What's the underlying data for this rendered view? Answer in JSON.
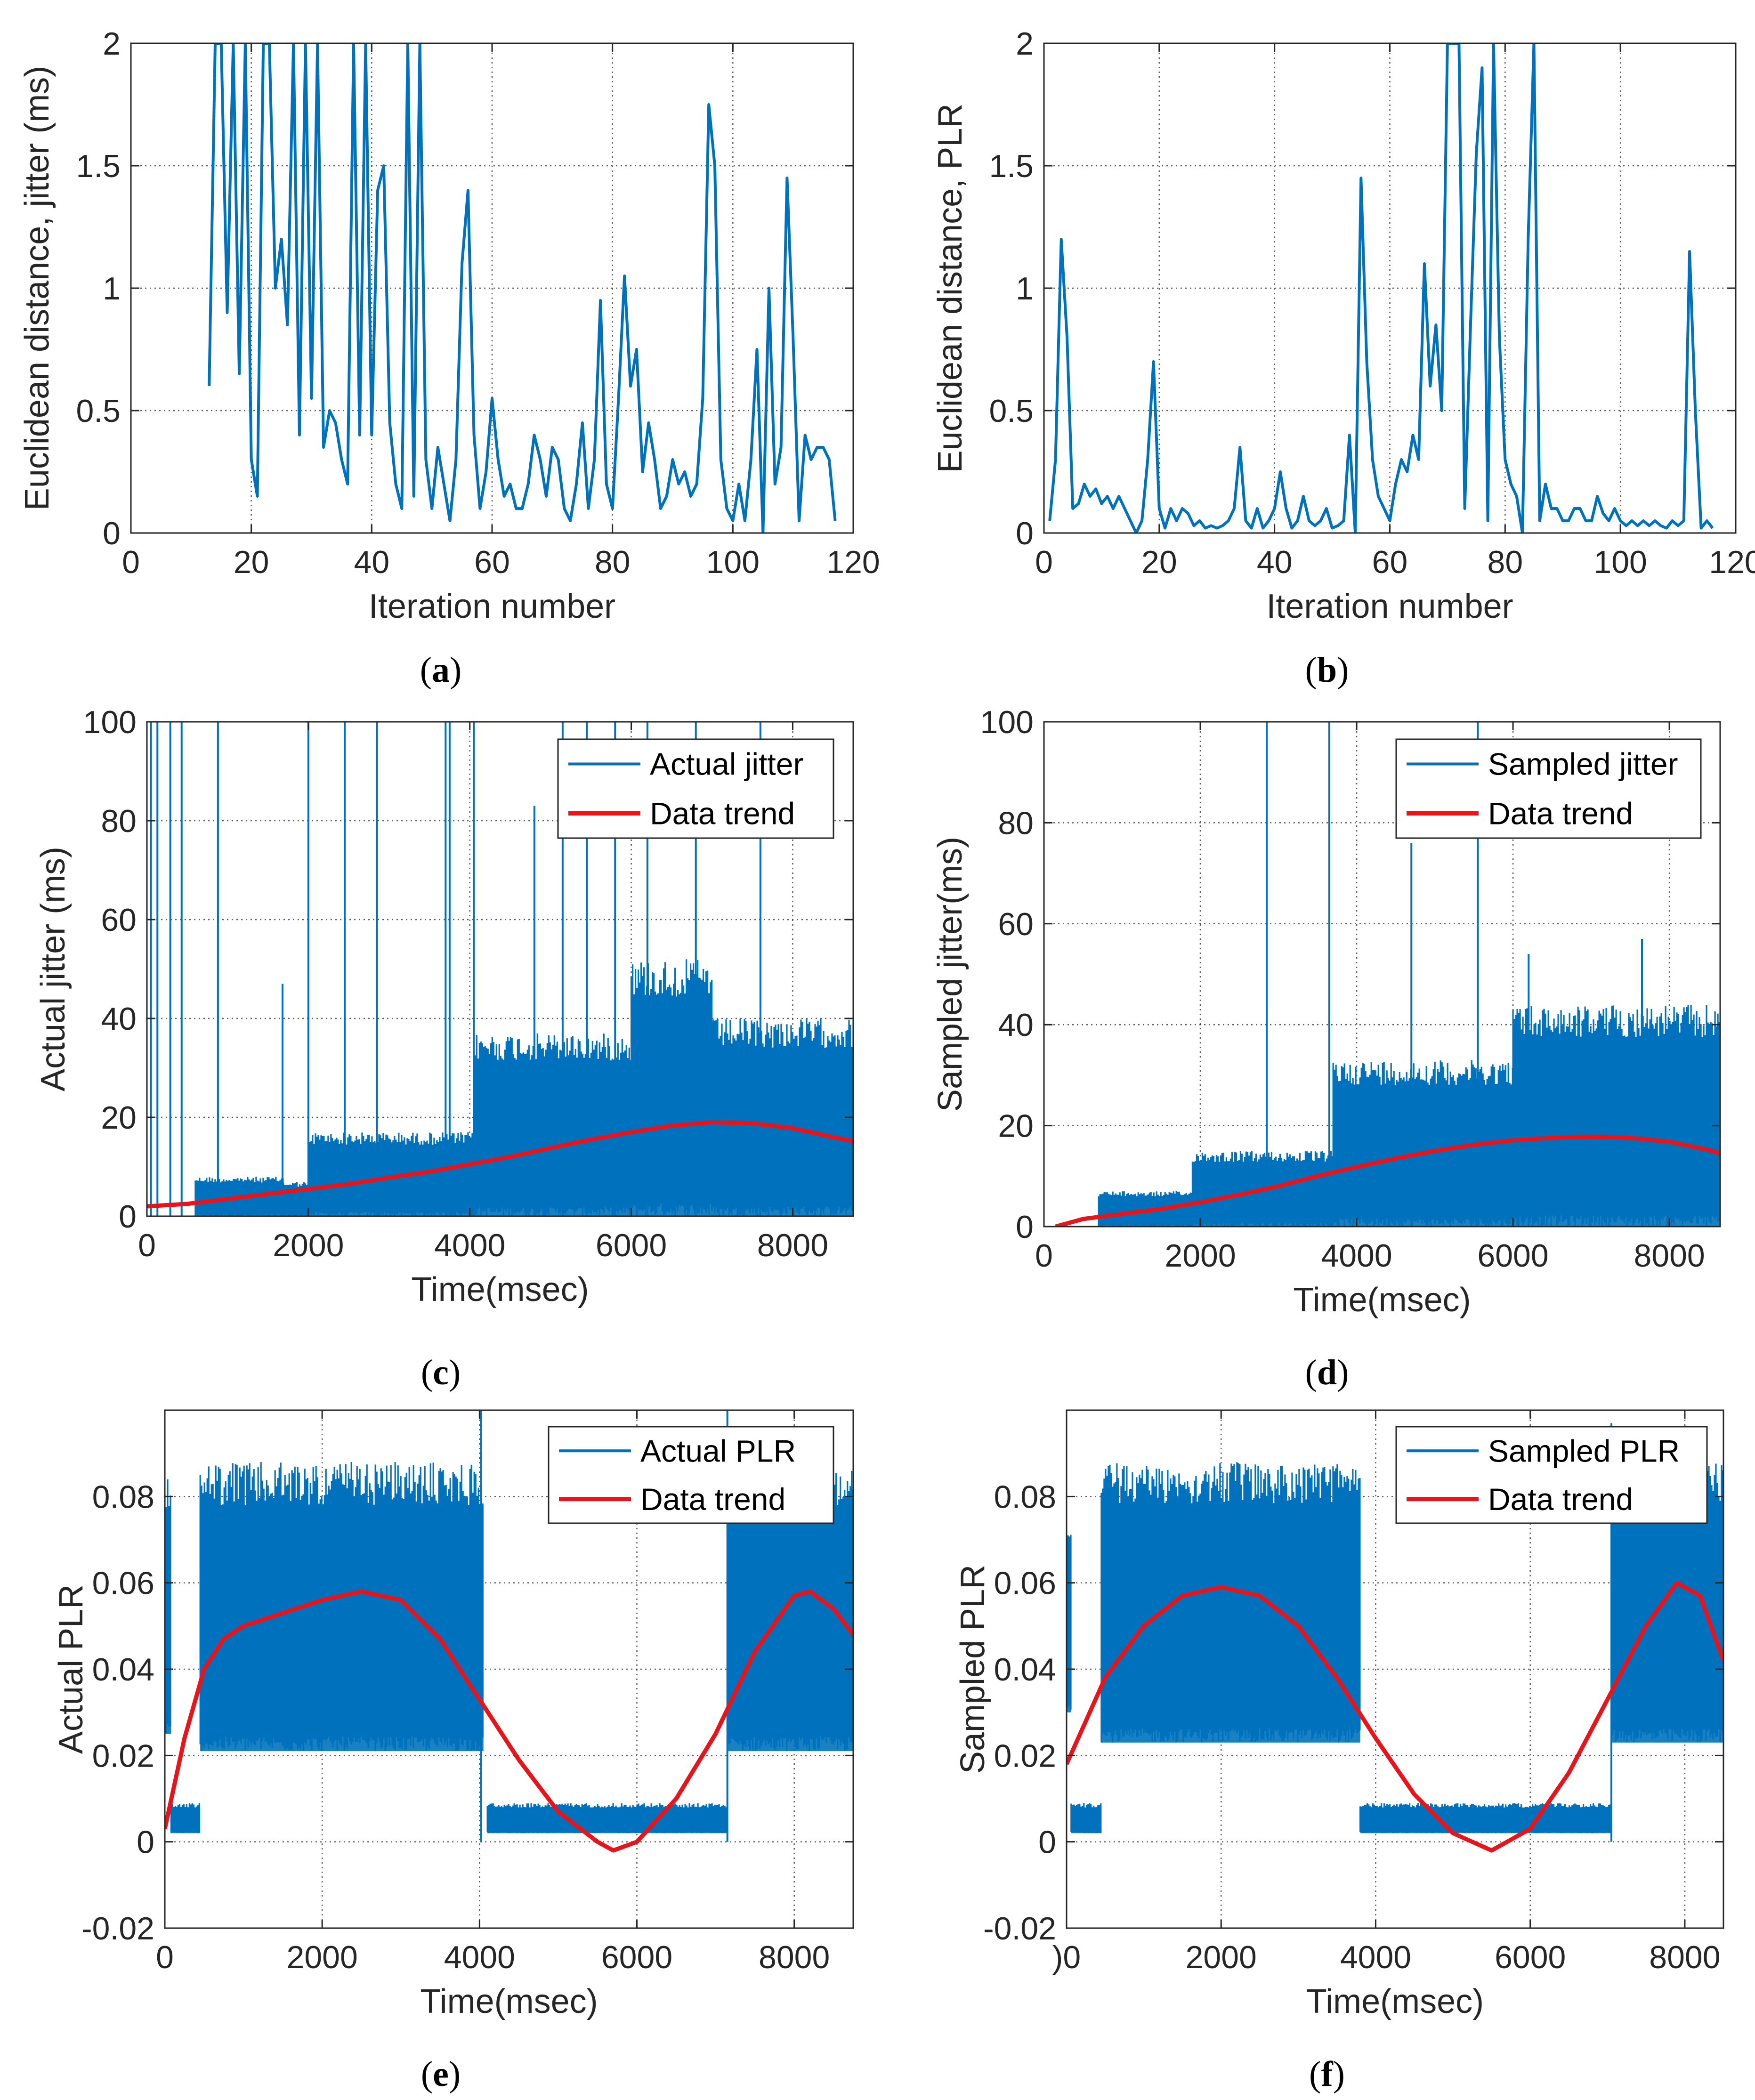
{
  "figure": {
    "colors": {
      "signal": "#0072BD",
      "trend": "#E8141C",
      "axes": "#262626",
      "grid": "#262626"
    },
    "panel_labels": [
      {
        "open": "(",
        "letter": "a",
        "close": ")"
      },
      {
        "open": "(",
        "letter": "b",
        "close": ")"
      },
      {
        "open": "(",
        "letter": "c",
        "close": ")"
      },
      {
        "open": "(",
        "letter": "d",
        "close": ")"
      },
      {
        "open": "(",
        "letter": "e",
        "close": ")"
      },
      {
        "open": "(",
        "letter": "f",
        "close": ")"
      }
    ]
  },
  "chart_data": [
    {
      "id": "a",
      "type": "line",
      "xlabel": "Iteration number",
      "ylabel": "Euclidean distance, jitter (ms)",
      "xlim": [
        0,
        120
      ],
      "ylim": [
        0,
        2
      ],
      "xticks": [
        0,
        20,
        40,
        60,
        80,
        100,
        120
      ],
      "yticks": [
        0,
        0.5,
        1,
        1.5,
        2
      ],
      "ytick_labels": [
        "0",
        "0.5",
        "1",
        "1.5",
        "2"
      ],
      "grid": "dotted",
      "series": [
        {
          "color": "#0072BD",
          "x": [
            13,
            14,
            15,
            16,
            17,
            18,
            19,
            20,
            21,
            22,
            23,
            24,
            25,
            26,
            27,
            28,
            29,
            30,
            31,
            32,
            33,
            34,
            35,
            36,
            37,
            38,
            39,
            40,
            41,
            42,
            43,
            44,
            45,
            46,
            47,
            48,
            49,
            50,
            51,
            52,
            53,
            54,
            55,
            56,
            57,
            58,
            59,
            60,
            61,
            62,
            63,
            64,
            65,
            66,
            67,
            68,
            69,
            70,
            71,
            72,
            73,
            74,
            75,
            76,
            77,
            78,
            79,
            80,
            81,
            82,
            83,
            84,
            85,
            86,
            87,
            88,
            89,
            90,
            91,
            92,
            93,
            94,
            95,
            96,
            97,
            98,
            99,
            100,
            101,
            102,
            103,
            104,
            105,
            106,
            107,
            108,
            109,
            110,
            111,
            112,
            113,
            114,
            115,
            116,
            117
          ],
          "y": [
            0.6,
            2,
            2,
            0.9,
            2,
            0.65,
            2,
            0.3,
            0.15,
            2,
            2,
            1.0,
            1.2,
            0.85,
            2,
            0.4,
            2,
            0.55,
            2,
            0.35,
            0.5,
            0.45,
            0.3,
            0.2,
            2,
            0.4,
            2,
            0.4,
            1.4,
            1.5,
            0.45,
            0.2,
            0.1,
            2,
            0.15,
            2,
            0.3,
            0.1,
            0.35,
            0.2,
            0.05,
            0.3,
            1.1,
            1.4,
            0.4,
            0.1,
            0.25,
            0.55,
            0.3,
            0.15,
            0.2,
            0.1,
            0.1,
            0.2,
            0.4,
            0.3,
            0.15,
            0.35,
            0.3,
            0.1,
            0.05,
            0.2,
            0.45,
            0.1,
            0.3,
            0.95,
            0.2,
            0.1,
            0.55,
            1.05,
            0.6,
            0.75,
            0.25,
            0.45,
            0.3,
            0.1,
            0.15,
            0.3,
            0.2,
            0.25,
            0.15,
            0.2,
            0.55,
            1.75,
            1.5,
            0.3,
            0.1,
            0.05,
            0.2,
            0.05,
            0.3,
            0.75,
            0.0,
            1.0,
            0.2,
            0.35,
            1.45,
            0.8,
            0.05,
            0.4,
            0.3,
            0.35,
            0.35,
            0.3,
            0.05
          ],
          "note": ""
        }
      ]
    },
    {
      "id": "b",
      "type": "line",
      "xlabel": "Iteration number",
      "ylabel": "Euclidean distance, PLR",
      "xlim": [
        0,
        120
      ],
      "ylim": [
        0,
        2
      ],
      "xticks": [
        0,
        20,
        40,
        60,
        80,
        100,
        120
      ],
      "yticks": [
        0,
        0.5,
        1,
        1.5,
        2
      ],
      "ytick_labels": [
        "0",
        "0.5",
        "1",
        "1.5",
        "2"
      ],
      "grid": "dotted",
      "series": [
        {
          "color": "#0072BD",
          "x": [
            1,
            2,
            3,
            4,
            5,
            6,
            7,
            8,
            9,
            10,
            11,
            12,
            13,
            14,
            15,
            16,
            17,
            18,
            19,
            20,
            21,
            22,
            23,
            24,
            25,
            26,
            27,
            28,
            29,
            30,
            31,
            32,
            33,
            34,
            35,
            36,
            37,
            38,
            39,
            40,
            41,
            42,
            43,
            44,
            45,
            46,
            47,
            48,
            49,
            50,
            51,
            52,
            53,
            54,
            55,
            56,
            57,
            58,
            59,
            60,
            61,
            62,
            63,
            64,
            65,
            66,
            67,
            68,
            69,
            70,
            71,
            72,
            73,
            74,
            75,
            76,
            77,
            78,
            79,
            80,
            81,
            82,
            83,
            84,
            85,
            86,
            87,
            88,
            89,
            90,
            91,
            92,
            93,
            94,
            95,
            96,
            97,
            98,
            99,
            100,
            101,
            102,
            103,
            104,
            105,
            106,
            107,
            108,
            109,
            110,
            111,
            112,
            113,
            114,
            115,
            116
          ],
          "y": [
            0.05,
            0.3,
            1.2,
            0.8,
            0.1,
            0.12,
            0.2,
            0.15,
            0.18,
            0.12,
            0.15,
            0.1,
            0.15,
            0.1,
            0.05,
            0.0,
            0.05,
            0.3,
            0.7,
            0.1,
            0.02,
            0.1,
            0.05,
            0.1,
            0.08,
            0.03,
            0.05,
            0.02,
            0.03,
            0.02,
            0.03,
            0.05,
            0.1,
            0.35,
            0.05,
            0.02,
            0.1,
            0.02,
            0.05,
            0.1,
            0.25,
            0.1,
            0.02,
            0.05,
            0.15,
            0.05,
            0.03,
            0.05,
            0.1,
            0.02,
            0.03,
            0.05,
            0.4,
            0.0,
            1.45,
            0.7,
            0.3,
            0.15,
            0.1,
            0.05,
            0.2,
            0.3,
            0.25,
            0.4,
            0.3,
            1.1,
            0.6,
            0.85,
            0.5,
            2,
            2,
            2,
            0.1,
            0.85,
            1.55,
            1.9,
            0.05,
            2,
            0.8,
            0.3,
            0.2,
            0.15,
            0.0,
            1.2,
            2,
            0.05,
            0.2,
            0.1,
            0.1,
            0.05,
            0.05,
            0.1,
            0.1,
            0.05,
            0.05,
            0.15,
            0.08,
            0.05,
            0.1,
            0.05,
            0.03,
            0.05,
            0.03,
            0.05,
            0.03,
            0.05,
            0.03,
            0.02,
            0.05,
            0.03,
            0.05,
            1.15,
            0.5,
            0.02,
            0.05,
            0.02
          ]
        }
      ]
    },
    {
      "id": "c",
      "type": "line",
      "xlabel": "Time(msec)",
      "ylabel": "Actual jitter (ms)",
      "xlim": [
        0,
        8750
      ],
      "ylim": [
        0,
        100
      ],
      "xticks": [
        0,
        2000,
        4000,
        6000,
        8000
      ],
      "yticks": [
        0,
        20,
        40,
        60,
        80,
        100
      ],
      "ytick_labels": [
        "0",
        "20",
        "40",
        "60",
        "80",
        "100"
      ],
      "grid": "dotted",
      "legend": {
        "position": "top-right",
        "entries": [
          "Actual jitter",
          "Data trend"
        ]
      },
      "signal_bands": [
        {
          "x0": 600,
          "x1": 1700,
          "lo": 0,
          "hi": 8
        },
        {
          "x0": 1700,
          "x1": 2000,
          "lo": 0,
          "hi": 7
        },
        {
          "x0": 2000,
          "x1": 4050,
          "lo": 0,
          "hi": 17
        },
        {
          "x0": 4050,
          "x1": 6000,
          "lo": 0,
          "hi": 37
        },
        {
          "x0": 6000,
          "x1": 7000,
          "lo": 0,
          "hi": 52
        },
        {
          "x0": 7000,
          "x1": 8750,
          "lo": 0,
          "hi": 40
        }
      ],
      "spikes": [
        {
          "x": 50,
          "y": 100
        },
        {
          "x": 130,
          "y": 100
        },
        {
          "x": 290,
          "y": 100
        },
        {
          "x": 430,
          "y": 100
        },
        {
          "x": 880,
          "y": 100
        },
        {
          "x": 1680,
          "y": 47
        },
        {
          "x": 2000,
          "y": 100
        },
        {
          "x": 2450,
          "y": 100
        },
        {
          "x": 2850,
          "y": 100
        },
        {
          "x": 3700,
          "y": 100
        },
        {
          "x": 3750,
          "y": 100
        },
        {
          "x": 4050,
          "y": 100
        },
        {
          "x": 4800,
          "y": 83
        },
        {
          "x": 5150,
          "y": 100
        },
        {
          "x": 5450,
          "y": 100
        },
        {
          "x": 5800,
          "y": 100
        },
        {
          "x": 6200,
          "y": 100
        },
        {
          "x": 6800,
          "y": 100
        },
        {
          "x": 7600,
          "y": 100
        }
      ],
      "series": [
        {
          "name": "Data trend",
          "color": "#E8141C",
          "x": [
            0,
            500,
            1000,
            1500,
            2000,
            2500,
            3000,
            3500,
            4000,
            4500,
            5000,
            5500,
            6000,
            6500,
            7000,
            7500,
            8000,
            8500,
            8750
          ],
          "y": [
            2,
            2.5,
            3.5,
            4.5,
            5.5,
            6.5,
            7.8,
            9,
            10.5,
            12,
            13.8,
            15.5,
            17,
            18.3,
            19,
            18.8,
            17.8,
            16,
            15.2
          ]
        }
      ]
    },
    {
      "id": "d",
      "type": "line",
      "xlabel": "Time(msec)",
      "ylabel": "Sampled jitter(ms)",
      "xlim": [
        0,
        8650
      ],
      "ylim": [
        0,
        100
      ],
      "xticks": [
        0,
        2000,
        4000,
        6000,
        8000
      ],
      "yticks": [
        0,
        20,
        40,
        60,
        80,
        100
      ],
      "ytick_labels": [
        "0",
        "20",
        "40",
        "60",
        "80",
        "100"
      ],
      "grid": "dotted",
      "legend": {
        "position": "top-right",
        "entries": [
          "Sampled jitter",
          "Data trend"
        ]
      },
      "signal_bands": [
        {
          "x0": 700,
          "x1": 1900,
          "lo": 0,
          "hi": 7
        },
        {
          "x0": 1900,
          "x1": 3700,
          "lo": 0,
          "hi": 15
        },
        {
          "x0": 3700,
          "x1": 6000,
          "lo": 0,
          "hi": 33
        },
        {
          "x0": 6000,
          "x1": 8650,
          "lo": 0,
          "hi": 44
        }
      ],
      "spikes": [
        {
          "x": 2850,
          "y": 100
        },
        {
          "x": 3650,
          "y": 100
        },
        {
          "x": 4700,
          "y": 76
        },
        {
          "x": 5550,
          "y": 100
        },
        {
          "x": 6200,
          "y": 54
        },
        {
          "x": 7650,
          "y": 57
        }
      ],
      "series": [
        {
          "name": "Data trend",
          "color": "#E8141C",
          "x": [
            150,
            500,
            1000,
            1500,
            2000,
            2500,
            3000,
            3500,
            4000,
            4500,
            5000,
            5500,
            6000,
            6500,
            7000,
            7500,
            8000,
            8500,
            8650
          ],
          "y": [
            0,
            1.5,
            2.5,
            3.5,
            4.8,
            6.3,
            8,
            10,
            11.8,
            13.5,
            15,
            16.2,
            17.1,
            17.6,
            17.8,
            17.6,
            16.8,
            15.2,
            14.5
          ]
        }
      ]
    },
    {
      "id": "e",
      "type": "line",
      "xlabel": "Time(msec)",
      "ylabel": "Actual PLR",
      "xlim": [
        0,
        8750
      ],
      "ylim": [
        -0.02,
        0.1
      ],
      "xticks": [
        0,
        2000,
        4000,
        6000,
        8000
      ],
      "yticks": [
        -0.02,
        0,
        0.02,
        0.04,
        0.06,
        0.08
      ],
      "ytick_labels": [
        "-0.02",
        "0",
        "0.02",
        "0.04",
        "0.06",
        "0.08"
      ],
      "grid": "dotted",
      "legend": {
        "position": "top-right",
        "entries": [
          "Actual PLR",
          "Data trend"
        ]
      },
      "signal_bands": [
        {
          "x0": 0,
          "x1": 80,
          "lo": 0.025,
          "hi": 0.085
        },
        {
          "x0": 80,
          "x1": 450,
          "lo": 0.002,
          "hi": 0.009
        },
        {
          "x0": 450,
          "x1": 4050,
          "lo": 0.021,
          "hi": 0.088
        },
        {
          "x0": 4100,
          "x1": 7150,
          "lo": 0.002,
          "hi": 0.009
        },
        {
          "x0": 7150,
          "x1": 8750,
          "lo": 0.021,
          "hi": 0.088
        }
      ],
      "spikes": [
        {
          "x": 4020,
          "y": 0.1
        },
        {
          "x": 7150,
          "y": 0.1
        }
      ],
      "series": [
        {
          "name": "Data trend",
          "color": "#E8141C",
          "x": [
            0,
            250,
            500,
            750,
            1000,
            1500,
            2000,
            2500,
            3000,
            3500,
            4000,
            4500,
            5000,
            5500,
            5700,
            6000,
            6500,
            7000,
            7500,
            8000,
            8200,
            8500,
            8750
          ],
          "y": [
            0.003,
            0.024,
            0.04,
            0.047,
            0.05,
            0.053,
            0.056,
            0.058,
            0.056,
            0.047,
            0.033,
            0.019,
            0.007,
            0.0,
            -0.002,
            0.0,
            0.01,
            0.025,
            0.044,
            0.057,
            0.058,
            0.054,
            0.048
          ]
        }
      ]
    },
    {
      "id": "f",
      "type": "line",
      "xlabel": "Time(msec)",
      "ylabel": "Sampled PLR",
      "xlim": [
        0,
        8500
      ],
      "ylim": [
        -0.02,
        0.1
      ],
      "xticks": [
        0,
        2000,
        4000,
        6000,
        8000
      ],
      "xtick_labels": [
        ")0",
        "2000",
        "4000",
        "6000",
        "8000"
      ],
      "yticks": [
        -0.02,
        0,
        0.02,
        0.04,
        0.06,
        0.08
      ],
      "ytick_labels": [
        "-0.02",
        "0",
        "0.02",
        "0.04",
        "0.06",
        "0.08"
      ],
      "grid": "dotted",
      "legend": {
        "position": "top-right",
        "entries": [
          "Sampled PLR",
          "Data trend"
        ]
      },
      "signal_bands": [
        {
          "x0": 0,
          "x1": 60,
          "lo": 0.03,
          "hi": 0.075
        },
        {
          "x0": 60,
          "x1": 450,
          "lo": 0.002,
          "hi": 0.009
        },
        {
          "x0": 450,
          "x1": 3800,
          "lo": 0.023,
          "hi": 0.088
        },
        {
          "x0": 3800,
          "x1": 7050,
          "lo": 0.002,
          "hi": 0.009
        },
        {
          "x0": 7050,
          "x1": 8500,
          "lo": 0.023,
          "hi": 0.088
        }
      ],
      "spikes": [
        {
          "x": 7050,
          "y": 0.097
        }
      ],
      "series": [
        {
          "name": "Data trend",
          "color": "#E8141C",
          "x": [
            0,
            500,
            1000,
            1500,
            2000,
            2500,
            3000,
            3500,
            4000,
            4500,
            5000,
            5500,
            6000,
            6500,
            7000,
            7500,
            7900,
            8200,
            8500
          ],
          "y": [
            0.018,
            0.038,
            0.05,
            0.057,
            0.059,
            0.057,
            0.05,
            0.038,
            0.024,
            0.011,
            0.002,
            -0.002,
            0.003,
            0.016,
            0.033,
            0.05,
            0.06,
            0.057,
            0.042
          ]
        }
      ]
    }
  ]
}
